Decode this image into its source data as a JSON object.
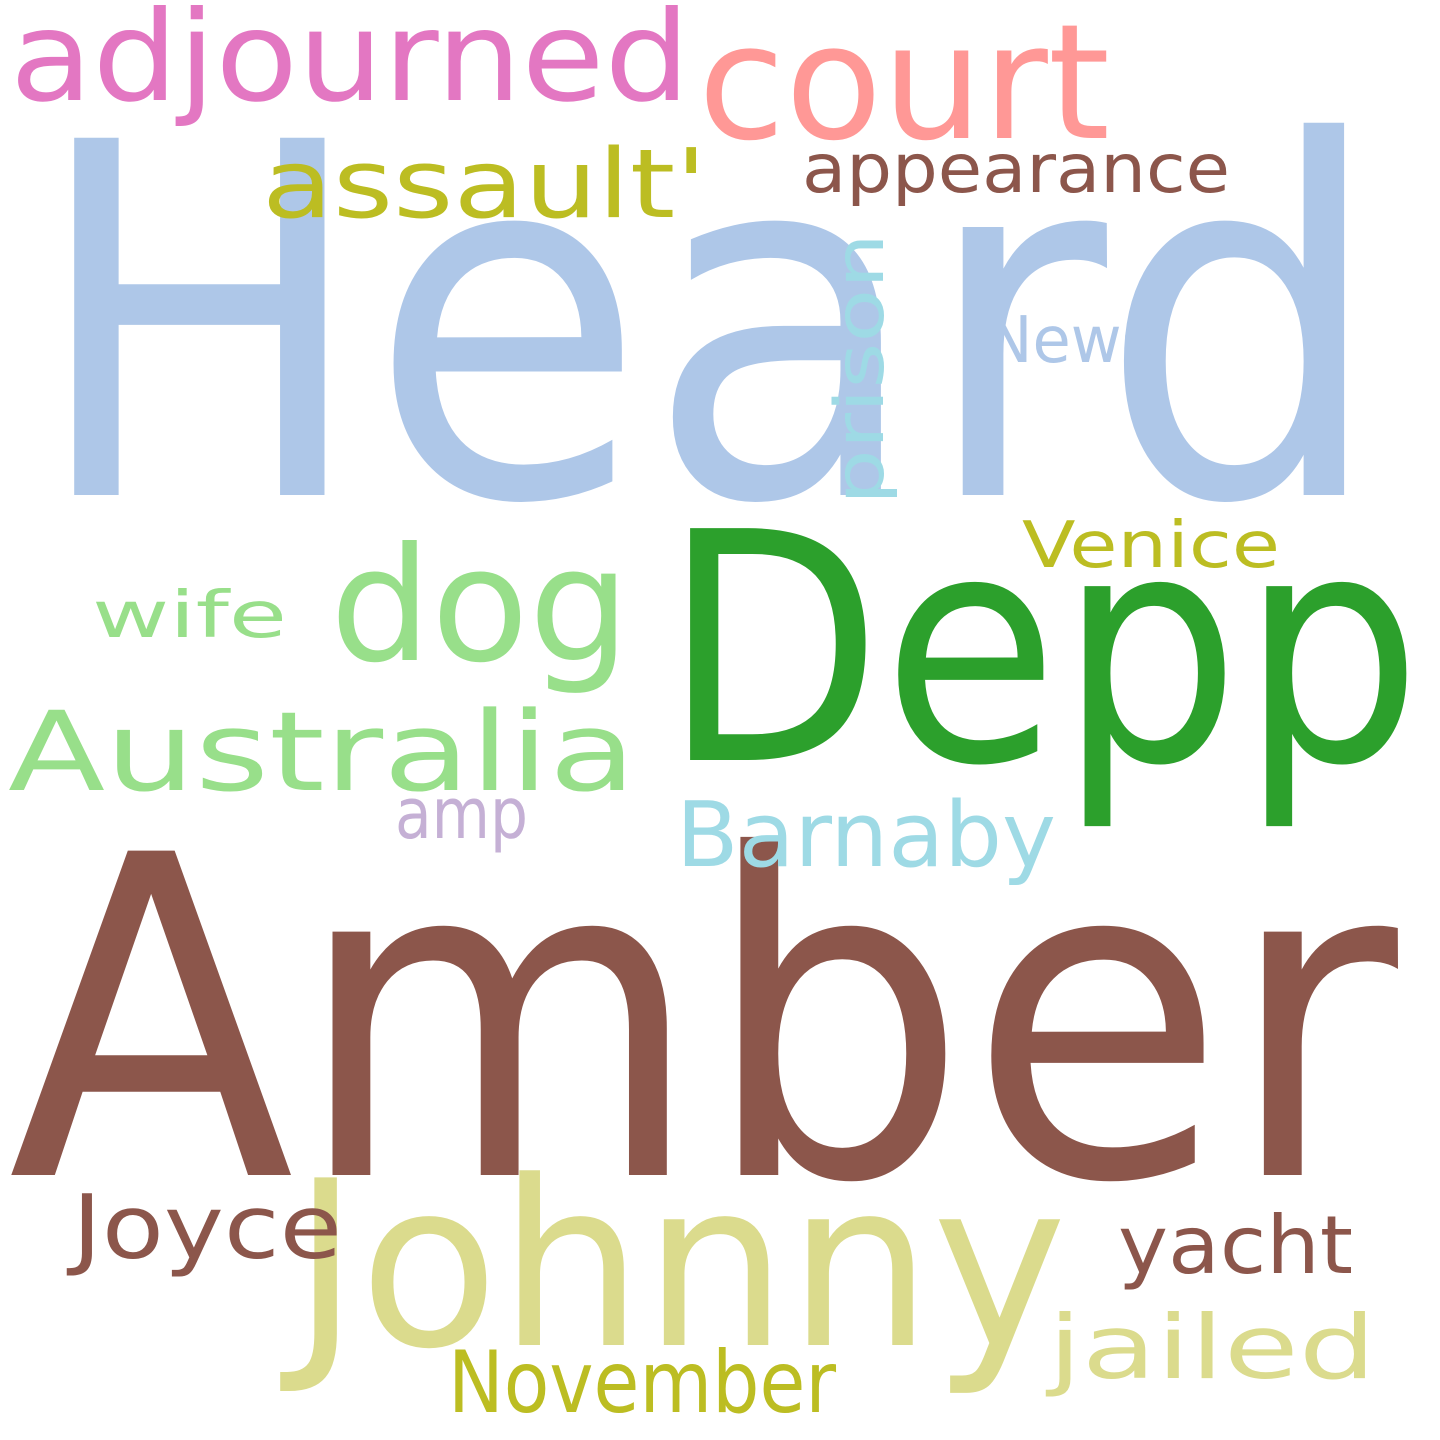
{
  "word_cloud": {
    "background": "#ffffff",
    "words": [
      {
        "text": "Amber",
        "color": "#8c564b"
      },
      {
        "text": "Heard",
        "color": "#aec7e8"
      },
      {
        "text": "Depp",
        "color": "#2ca02c"
      },
      {
        "text": "Johnny",
        "color": "#dbdb8d"
      },
      {
        "text": "court",
        "color": "#ff9896"
      },
      {
        "text": "adjourned",
        "color": "#e377c2"
      },
      {
        "text": "dog",
        "color": "#98df8a"
      },
      {
        "text": "Australia",
        "color": "#98df8a"
      },
      {
        "text": "assault'",
        "color": "#bcbd22"
      },
      {
        "text": "appearance",
        "color": "#8c564b"
      },
      {
        "text": "prison",
        "color": "#9edae5"
      },
      {
        "text": "News",
        "color": "#aec7e8"
      },
      {
        "text": "Venice",
        "color": "#bcbd22"
      },
      {
        "text": "wife",
        "color": "#98df8a"
      },
      {
        "text": "Barnaby",
        "color": "#9edae5"
      },
      {
        "text": "amp",
        "color": "#c5b0d5"
      },
      {
        "text": "Joyce",
        "color": "#8c564b"
      },
      {
        "text": "yacht",
        "color": "#8c564b"
      },
      {
        "text": "jailed",
        "color": "#dbdb8d"
      },
      {
        "text": "November",
        "color": "#bcbd22"
      }
    ]
  }
}
